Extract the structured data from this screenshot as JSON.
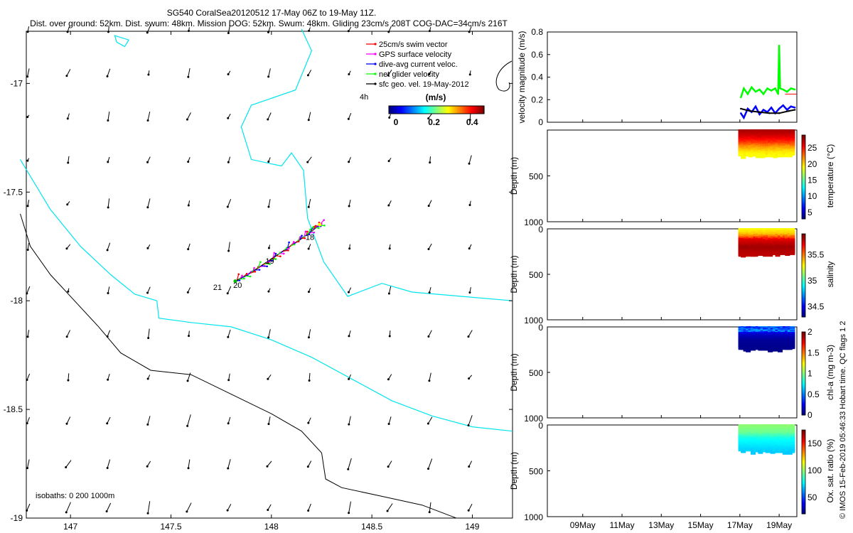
{
  "title_line1": "SG540 CoralSea20120512 17-May 06Z to 19-May 11Z.",
  "title_line2": "Dist. over ground: 52km. Dist. swum: 48km. Mission DOG: 52km. Swum: 48km. Gliding 23cm/s 208T COG-DAC=34cm/s 216T",
  "credit": "© IMOS 15-Feb-2019 05:46:33 Hobart time. QC flags 1 2",
  "colors": {
    "coast": "#00e5ee",
    "isobath": "#000000",
    "swim": "#ff0000",
    "gps": "#ff00ff",
    "dac": "#0000ff",
    "net": "#00ff00",
    "sfc": "#000000"
  },
  "chart_data": [
    {
      "type": "map",
      "id": "track_map",
      "xlim": [
        146.75,
        149.2
      ],
      "ylim": [
        -19.0,
        -16.75
      ],
      "xticks": [
        147,
        147.5,
        148,
        148.5,
        149
      ],
      "xtick_labels": [
        "147",
        "147.5",
        "148",
        "148.5",
        "149"
      ],
      "yticks": [
        -17,
        -17.5,
        -18,
        -18.5,
        -19
      ],
      "ytick_labels": [
        "-17",
        "-17.5",
        "-18",
        "-18.5",
        "-19"
      ],
      "legend": [
        {
          "label": "25cm/s swim vector",
          "color": "#ff0000"
        },
        {
          "label": "GPS surface velocity",
          "color": "#ff00ff"
        },
        {
          "label": "dive-avg current veloc.",
          "color": "#0000ff"
        },
        {
          "label": "net glider velocity",
          "color": "#00ff00"
        },
        {
          "label": "sfc geo. vel. 19-May-2012",
          "color": "#000000"
        }
      ],
      "legend_time_label": "4h",
      "colorbar": {
        "label": "(m/s)",
        "ticks": [
          0,
          0.2,
          0.4
        ],
        "tick_labels": [
          "0",
          "0.2",
          "0.4"
        ],
        "range": [
          0,
          0.5
        ]
      },
      "isobath_label": "isobaths: 0   200  1000m",
      "day_labels": [
        {
          "text": "18",
          "lon": 148.17,
          "lat": -17.72
        },
        {
          "text": "19",
          "lon": 147.97,
          "lat": -17.83
        },
        {
          "text": "20",
          "lon": 147.81,
          "lat": -17.94
        },
        {
          "text": "21",
          "lon": 147.71,
          "lat": -17.95
        }
      ],
      "track": [
        [
          147.82,
          -17.91
        ],
        [
          147.9,
          -17.87
        ],
        [
          147.98,
          -17.82
        ],
        [
          148.06,
          -17.77
        ],
        [
          148.14,
          -17.72
        ],
        [
          148.2,
          -17.68
        ],
        [
          148.24,
          -17.65
        ]
      ],
      "coastline_200m": [
        [
          146.75,
          -17.35
        ],
        [
          146.9,
          -17.58
        ],
        [
          147.05,
          -17.75
        ],
        [
          147.2,
          -17.88
        ],
        [
          147.32,
          -17.97
        ],
        [
          147.43,
          -18.0
        ],
        [
          147.44,
          -18.08
        ],
        [
          147.6,
          -18.1
        ],
        [
          147.8,
          -18.12
        ],
        [
          148.0,
          -18.18
        ],
        [
          148.2,
          -18.26
        ],
        [
          148.4,
          -18.36
        ],
        [
          148.6,
          -18.46
        ],
        [
          148.8,
          -18.53
        ],
        [
          149.0,
          -18.58
        ],
        [
          149.2,
          -18.6
        ]
      ],
      "coastline_1000m": [
        [
          146.75,
          -17.6
        ],
        [
          146.8,
          -17.75
        ],
        [
          146.9,
          -17.88
        ],
        [
          147.02,
          -18.0
        ],
        [
          147.14,
          -18.12
        ],
        [
          147.25,
          -18.24
        ],
        [
          147.4,
          -18.32
        ],
        [
          147.6,
          -18.34
        ],
        [
          147.8,
          -18.43
        ],
        [
          148.0,
          -18.52
        ],
        [
          148.15,
          -18.6
        ],
        [
          148.25,
          -18.7
        ],
        [
          148.27,
          -18.82
        ],
        [
          148.35,
          -18.86
        ],
        [
          148.55,
          -18.9
        ],
        [
          148.75,
          -18.94
        ],
        [
          148.92,
          -19.0
        ]
      ],
      "reef_outline": [
        [
          147.22,
          -16.78
        ],
        [
          147.29,
          -16.8
        ],
        [
          147.27,
          -16.83
        ],
        [
          147.23,
          -16.81
        ]
      ],
      "reef_edge": [
        [
          148.15,
          -16.75
        ],
        [
          148.2,
          -16.85
        ],
        [
          148.12,
          -17.03
        ],
        [
          147.9,
          -17.1
        ],
        [
          147.85,
          -17.2
        ],
        [
          147.9,
          -17.35
        ],
        [
          148.05,
          -17.38
        ],
        [
          148.1,
          -17.32
        ],
        [
          148.16,
          -17.4
        ],
        [
          148.18,
          -17.62
        ],
        [
          148.26,
          -17.82
        ],
        [
          148.38,
          -17.98
        ],
        [
          148.55,
          -17.92
        ],
        [
          148.7,
          -17.96
        ],
        [
          148.95,
          -17.98
        ],
        [
          149.2,
          -18.0
        ]
      ]
    },
    {
      "type": "line",
      "id": "velocity",
      "ylabel": "velocity magnitude (m/s)",
      "ylim": [
        0,
        0.8
      ],
      "yticks": [
        0,
        0.2,
        0.4,
        0.6,
        0.8
      ],
      "ytick_labels": [
        "0",
        "0.2",
        "0.4",
        "0.6",
        "0.8"
      ],
      "xlim": [
        7.2,
        19.9
      ],
      "series": [
        {
          "name": "net glider velocity",
          "color": "#00ff00",
          "x": [
            17.05,
            17.2,
            17.4,
            17.6,
            17.8,
            18.0,
            18.2,
            18.4,
            18.6,
            18.8,
            18.95,
            19.0,
            19.05,
            19.2,
            19.4,
            19.6,
            19.8
          ],
          "values": [
            0.22,
            0.3,
            0.25,
            0.31,
            0.27,
            0.29,
            0.25,
            0.3,
            0.28,
            0.3,
            0.25,
            0.68,
            0.3,
            0.29,
            0.27,
            0.3,
            0.29
          ]
        },
        {
          "name": "dive-avg current veloc.",
          "color": "#0000ff",
          "x": [
            17.05,
            17.2,
            17.4,
            17.6,
            17.8,
            18.0,
            18.2,
            18.4,
            18.6,
            18.8,
            19.0,
            19.2,
            19.4,
            19.6,
            19.8
          ],
          "values": [
            0.08,
            0.04,
            0.12,
            0.09,
            0.14,
            0.07,
            0.11,
            0.09,
            0.13,
            0.08,
            0.12,
            0.15,
            0.11,
            0.14,
            0.13
          ]
        },
        {
          "name": "sfc geo. vel.",
          "color": "#000000",
          "x": [
            17.05,
            17.5,
            18.0,
            18.5,
            19.0,
            19.5,
            19.8
          ],
          "values": [
            0.12,
            0.1,
            0.09,
            0.08,
            0.08,
            0.1,
            0.11
          ]
        }
      ]
    },
    {
      "type": "scatter",
      "id": "temperature",
      "ylabel": "Depth (m)",
      "colorbar_label": "temperature (°C)",
      "ylim": [
        1000,
        0
      ],
      "yticks": [
        0,
        500,
        1000
      ],
      "ytick_labels": [
        "",
        "500",
        "1000"
      ],
      "color_range": [
        3,
        29
      ],
      "colorbar_ticks": [
        5,
        10,
        15,
        20,
        25
      ],
      "colorbar_tick_labels": [
        "5",
        "10",
        "15",
        "20",
        "25"
      ],
      "profile": [
        [
          0,
          28
        ],
        [
          60,
          27
        ],
        [
          120,
          25
        ],
        [
          180,
          22
        ],
        [
          230,
          20
        ],
        [
          280,
          19
        ]
      ],
      "max_depth": 290
    },
    {
      "type": "scatter",
      "id": "salinity",
      "ylabel": "Depth (m)",
      "colorbar_label": "salinity",
      "ylim": [
        1000,
        0
      ],
      "yticks": [
        0,
        500,
        1000
      ],
      "ytick_labels": [
        "0",
        "500",
        "1000"
      ],
      "color_range": [
        34.3,
        35.9
      ],
      "colorbar_ticks": [
        34.5,
        35,
        35.5
      ],
      "colorbar_tick_labels": [
        "34.5",
        "35",
        "35.5"
      ],
      "profile": [
        [
          0,
          35.3
        ],
        [
          60,
          35.4
        ],
        [
          120,
          35.75
        ],
        [
          200,
          35.85
        ],
        [
          280,
          35.8
        ]
      ],
      "max_depth": 290
    },
    {
      "type": "scatter",
      "id": "chla",
      "ylabel": "Depth (m)",
      "colorbar_label": "chl-a (mg m-3)",
      "ylim": [
        1000,
        0
      ],
      "yticks": [
        0,
        500,
        1000
      ],
      "ytick_labels": [
        "0",
        "500",
        "1000"
      ],
      "color_range": [
        0,
        2
      ],
      "colorbar_ticks": [
        0,
        0.5,
        1,
        1.5,
        2
      ],
      "colorbar_tick_labels": [
        "0",
        "0.5",
        "1",
        "1.5",
        "2"
      ],
      "profile": [
        [
          0,
          0.2
        ],
        [
          40,
          0.3
        ],
        [
          80,
          0.15
        ],
        [
          140,
          0.05
        ],
        [
          250,
          0.02
        ]
      ],
      "max_depth": 260
    },
    {
      "type": "scatter",
      "id": "oxygen",
      "ylabel": "Depth (m)",
      "colorbar_label": "Ox. sat. ratio (%)",
      "ylim": [
        1000,
        0
      ],
      "yticks": [
        0,
        500,
        1000
      ],
      "ytick_labels": [
        "0",
        "500",
        "1000"
      ],
      "x_tick_labels": [
        "09May",
        "11May",
        "13May",
        "15May",
        "17May",
        "19May"
      ],
      "x_ticks": [
        9,
        11,
        13,
        15,
        17,
        19
      ],
      "color_range": [
        20,
        175
      ],
      "colorbar_ticks": [
        50,
        100,
        150
      ],
      "colorbar_tick_labels": [
        "50",
        "100",
        "150"
      ],
      "profile": [
        [
          0,
          100
        ],
        [
          80,
          95
        ],
        [
          150,
          80
        ],
        [
          220,
          75
        ],
        [
          290,
          70
        ]
      ],
      "max_depth": 300
    }
  ]
}
